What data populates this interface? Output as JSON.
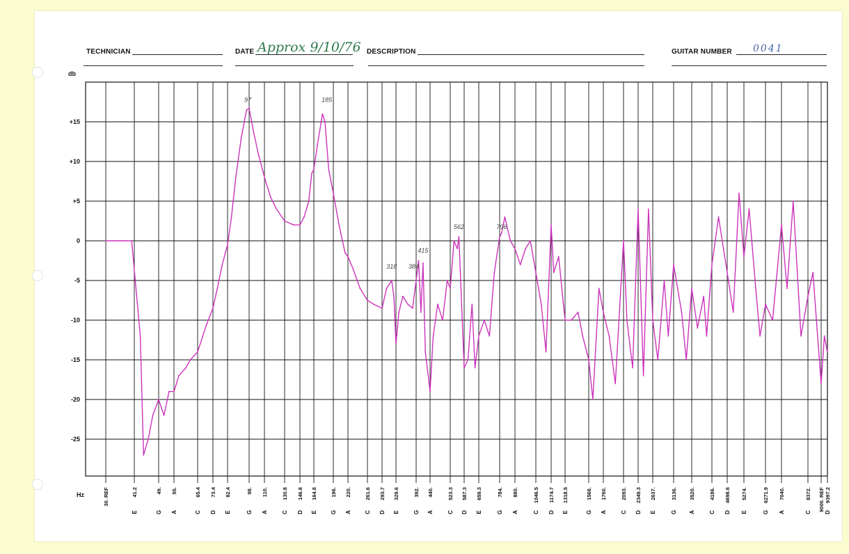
{
  "header": {
    "technician_label": "TECHNICIAN",
    "date_label": "DATE",
    "date_value": "Approx 9/10/76",
    "description_label": "DESCRIPTION",
    "guitar_number_label": "GUITAR NUMBER",
    "guitar_number_value": "0041"
  },
  "chart_data": {
    "type": "line",
    "title": "",
    "ylabel": "db",
    "xlabel": "Hz",
    "ylim": [
      -30,
      20
    ],
    "y_ticks": [
      "+15",
      "+10",
      "+5",
      "0",
      "-5",
      "-10",
      "-15",
      "-20",
      "-25"
    ],
    "y_tick_values": [
      15,
      10,
      5,
      0,
      -5,
      -10,
      -15,
      -20,
      -25
    ],
    "x_scale": "log",
    "x_ticks": [
      {
        "note": "",
        "freq": "30. REF",
        "value": 30
      },
      {
        "note": "E",
        "freq": "41.2",
        "value": 41.2
      },
      {
        "note": "G",
        "freq": "49.",
        "value": 49
      },
      {
        "note": "A",
        "freq": "55.",
        "value": 55
      },
      {
        "note": "C",
        "freq": "65.4",
        "value": 65.4
      },
      {
        "note": "D",
        "freq": "73.4",
        "value": 73.4
      },
      {
        "note": "E",
        "freq": "82.4",
        "value": 82.4
      },
      {
        "note": "G",
        "freq": "98.",
        "value": 98
      },
      {
        "note": "A",
        "freq": "110.",
        "value": 110
      },
      {
        "note": "C",
        "freq": "130.8",
        "value": 130.8
      },
      {
        "note": "D",
        "freq": "146.8",
        "value": 146.8
      },
      {
        "note": "E",
        "freq": "164.8",
        "value": 164.8
      },
      {
        "note": "G",
        "freq": "196.",
        "value": 196
      },
      {
        "note": "A",
        "freq": "220.",
        "value": 220
      },
      {
        "note": "C",
        "freq": "261.6",
        "value": 261.6
      },
      {
        "note": "D",
        "freq": "293.7",
        "value": 293.7
      },
      {
        "note": "E",
        "freq": "329.6",
        "value": 329.6
      },
      {
        "note": "G",
        "freq": "392.",
        "value": 392
      },
      {
        "note": "A",
        "freq": "440.",
        "value": 440
      },
      {
        "note": "C",
        "freq": "523.3",
        "value": 523.3
      },
      {
        "note": "D",
        "freq": "587.3",
        "value": 587.3
      },
      {
        "note": "E",
        "freq": "659.3",
        "value": 659.3
      },
      {
        "note": "G",
        "freq": "784.",
        "value": 784
      },
      {
        "note": "A",
        "freq": "880.",
        "value": 880
      },
      {
        "note": "C",
        "freq": "1046.5",
        "value": 1046.5
      },
      {
        "note": "D",
        "freq": "1174.7",
        "value": 1174.7
      },
      {
        "note": "E",
        "freq": "1318.5",
        "value": 1318.5
      },
      {
        "note": "G",
        "freq": "1568.",
        "value": 1568
      },
      {
        "note": "A",
        "freq": "1760.",
        "value": 1760
      },
      {
        "note": "C",
        "freq": "2093.",
        "value": 2093
      },
      {
        "note": "D",
        "freq": "2349.3",
        "value": 2349.3
      },
      {
        "note": "E",
        "freq": "2637.",
        "value": 2637
      },
      {
        "note": "G",
        "freq": "3136.",
        "value": 3136
      },
      {
        "note": "A",
        "freq": "3520.",
        "value": 3520
      },
      {
        "note": "C",
        "freq": "4186.",
        "value": 4186
      },
      {
        "note": "D",
        "freq": "4698.6",
        "value": 4698.6
      },
      {
        "note": "E",
        "freq": "5274.",
        "value": 5274
      },
      {
        "note": "G",
        "freq": "6271.9",
        "value": 6271.9
      },
      {
        "note": "A",
        "freq": "7040.",
        "value": 7040
      },
      {
        "note": "C",
        "freq": "8372.",
        "value": 8372
      },
      {
        "note": "",
        "freq": "9000. REF",
        "value": 9000
      },
      {
        "note": "D",
        "freq": "9397.2",
        "value": 9397.2
      }
    ],
    "grid": true,
    "series_color": "#cc33bb",
    "series": [
      {
        "points": [
          [
            30,
            0
          ],
          [
            34,
            0
          ],
          [
            37,
            0
          ],
          [
            40,
            0
          ],
          [
            43,
            -12
          ],
          [
            44,
            -27
          ],
          [
            45.5,
            -25
          ],
          [
            47,
            -22
          ],
          [
            49,
            -20
          ],
          [
            51,
            -22
          ],
          [
            53,
            -19
          ],
          [
            55,
            -19
          ],
          [
            57,
            -17
          ],
          [
            60,
            -16
          ],
          [
            62,
            -15
          ],
          [
            65.4,
            -14
          ],
          [
            68,
            -12
          ],
          [
            70,
            -10.5
          ],
          [
            73.4,
            -8.5
          ],
          [
            76,
            -6
          ],
          [
            79,
            -3
          ],
          [
            82.4,
            -0.5
          ],
          [
            85,
            3
          ],
          [
            88,
            8
          ],
          [
            92,
            13
          ],
          [
            96,
            16.5
          ],
          [
            98,
            16.7
          ],
          [
            101,
            14
          ],
          [
            105,
            11
          ],
          [
            110,
            8
          ],
          [
            116,
            5.5
          ],
          [
            122,
            4
          ],
          [
            130.8,
            2.5
          ],
          [
            140,
            2
          ],
          [
            146.8,
            2
          ],
          [
            152,
            3
          ],
          [
            158,
            5
          ],
          [
            162,
            8.5
          ],
          [
            164.8,
            9
          ],
          [
            170,
            12
          ],
          [
            178,
            16
          ],
          [
            182,
            15
          ],
          [
            188,
            9
          ],
          [
            196,
            6
          ],
          [
            205,
            2
          ],
          [
            215,
            -1.5
          ],
          [
            220,
            -2
          ],
          [
            230,
            -3.5
          ],
          [
            245,
            -6
          ],
          [
            261.6,
            -7.5
          ],
          [
            275,
            -8
          ],
          [
            293.7,
            -8.5
          ],
          [
            305,
            -6
          ],
          [
            318,
            -5
          ],
          [
            324,
            -7
          ],
          [
            329.6,
            -13
          ],
          [
            338,
            -9
          ],
          [
            350,
            -7
          ],
          [
            365,
            -8
          ],
          [
            380,
            -8.5
          ],
          [
            392,
            -5
          ],
          [
            400,
            -2.5
          ],
          [
            408,
            -9
          ],
          [
            415,
            -2.8
          ],
          [
            423,
            -14
          ],
          [
            440,
            -19
          ],
          [
            452,
            -12
          ],
          [
            470,
            -8
          ],
          [
            490,
            -10
          ],
          [
            510,
            -5
          ],
          [
            523.3,
            -6
          ],
          [
            540,
            0
          ],
          [
            555,
            -1
          ],
          [
            562,
            0.5
          ],
          [
            572,
            -6
          ],
          [
            587.3,
            -16
          ],
          [
            605,
            -15
          ],
          [
            625,
            -8
          ],
          [
            640,
            -16
          ],
          [
            659.3,
            -12
          ],
          [
            690,
            -10
          ],
          [
            720,
            -12
          ],
          [
            750,
            -4
          ],
          [
            784,
            0.5
          ],
          [
            796,
            1
          ],
          [
            815,
            3
          ],
          [
            850,
            0
          ],
          [
            880,
            -1
          ],
          [
            920,
            -3
          ],
          [
            960,
            -1
          ],
          [
            1000,
            0
          ],
          [
            1046.5,
            -4
          ],
          [
            1090,
            -8
          ],
          [
            1130,
            -14
          ],
          [
            1174.7,
            2
          ],
          [
            1200,
            -4
          ],
          [
            1250,
            -2
          ],
          [
            1300,
            -8
          ],
          [
            1318.5,
            -10
          ],
          [
            1380,
            -10
          ],
          [
            1450,
            -9
          ],
          [
            1500,
            -12
          ],
          [
            1568,
            -15
          ],
          [
            1620,
            -20
          ],
          [
            1700,
            -6
          ],
          [
            1760,
            -9
          ],
          [
            1850,
            -12
          ],
          [
            1950,
            -18
          ],
          [
            2093,
            0
          ],
          [
            2150,
            -10
          ],
          [
            2250,
            -16
          ],
          [
            2349.3,
            4
          ],
          [
            2450,
            -17
          ],
          [
            2550,
            4
          ],
          [
            2637,
            -10
          ],
          [
            2750,
            -15
          ],
          [
            2900,
            -5
          ],
          [
            3000,
            -12
          ],
          [
            3136,
            -3
          ],
          [
            3300,
            -9
          ],
          [
            3400,
            -15
          ],
          [
            3520,
            -6
          ],
          [
            3700,
            -11
          ],
          [
            3900,
            -7
          ],
          [
            4000,
            -12
          ],
          [
            4186,
            -3
          ],
          [
            4400,
            3
          ],
          [
            4698.6,
            -4
          ],
          [
            4900,
            -9
          ],
          [
            5100,
            6
          ],
          [
            5274,
            -2
          ],
          [
            5500,
            4
          ],
          [
            5800,
            -6
          ],
          [
            6000,
            -12
          ],
          [
            6271.9,
            -8
          ],
          [
            6600,
            -10
          ],
          [
            7040,
            2
          ],
          [
            7300,
            -6
          ],
          [
            7600,
            5
          ],
          [
            8000,
            -12
          ],
          [
            8372,
            -7
          ],
          [
            8600,
            -4
          ],
          [
            9000,
            -18
          ],
          [
            9200,
            -12
          ],
          [
            9397.2,
            -14
          ]
        ]
      }
    ],
    "annotations": [
      {
        "text": "97",
        "x": 97,
        "y": 17.5
      },
      {
        "text": "185",
        "x": 185,
        "y": 17.5
      },
      {
        "text": "318",
        "x": 318,
        "y": -3.5
      },
      {
        "text": "384",
        "x": 384,
        "y": -3.5
      },
      {
        "text": "415",
        "x": 415,
        "y": -1.5
      },
      {
        "text": "562",
        "x": 562,
        "y": 1.5
      },
      {
        "text": "796",
        "x": 796,
        "y": 1.5
      }
    ]
  }
}
